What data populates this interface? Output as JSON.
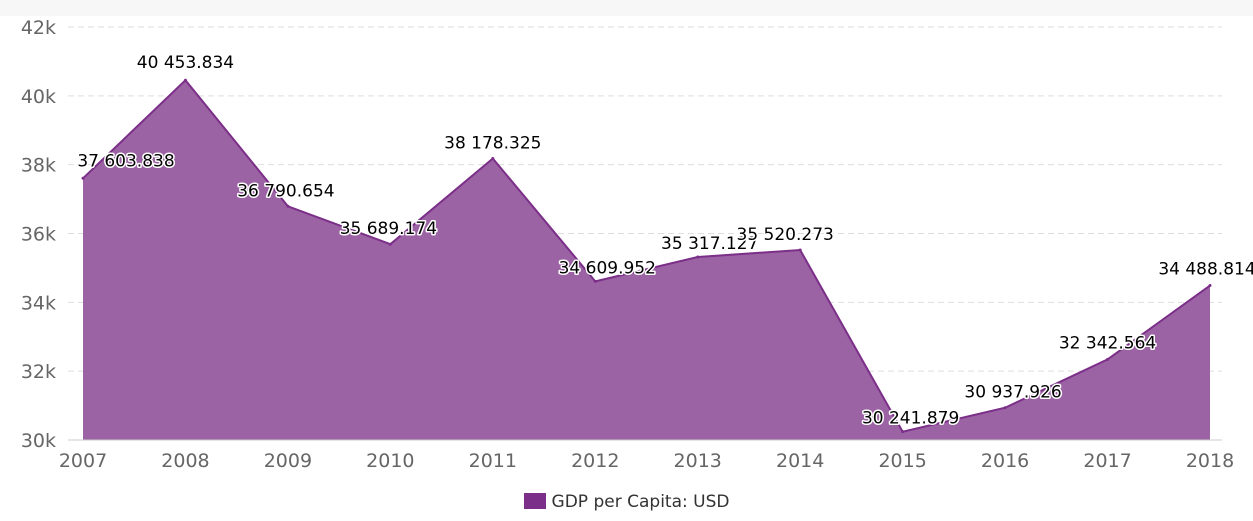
{
  "chart_data": {
    "type": "area",
    "title": "",
    "xlabel": "",
    "ylabel": "",
    "x": [
      "2007",
      "2008",
      "2009",
      "2010",
      "2011",
      "2012",
      "2013",
      "2014",
      "2015",
      "2016",
      "2017",
      "2018"
    ],
    "series": [
      {
        "name": "GDP per Capita: USD",
        "values": [
          37603.838,
          40453.834,
          36790.654,
          35689.174,
          38178.325,
          34609.952,
          35317.127,
          35520.273,
          30241.879,
          30937.926,
          32342.564,
          34488.814
        ],
        "labels": [
          "37 603.838",
          "40 453.834",
          "36 790.654",
          "35 689.174",
          "38 178.325",
          "34 609.952",
          "35 317.127",
          "35 520.273",
          "30 241.879",
          "30 937.926",
          "32 342.564",
          "34 488.814"
        ],
        "color": "#9b62a4",
        "line_color": "#7b2f88"
      }
    ],
    "ylim": [
      30000,
      42000
    ],
    "yticks": [
      30000,
      32000,
      34000,
      36000,
      38000,
      40000,
      42000
    ],
    "ytick_labels": [
      "30k",
      "32k",
      "34k",
      "36k",
      "38k",
      "40k",
      "42k"
    ],
    "grid": true,
    "legend": "bottom-center"
  },
  "legend": {
    "label": "GDP per Capita: USD",
    "swatch_color": "#7b2f88"
  }
}
